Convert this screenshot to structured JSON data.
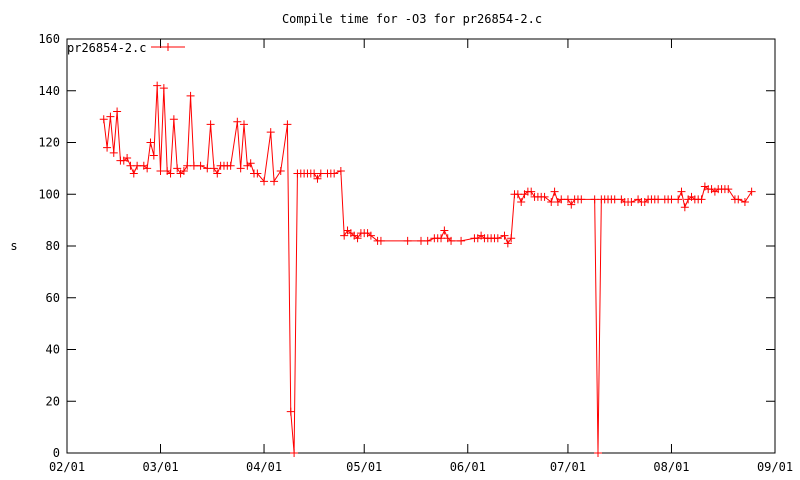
{
  "chart_data": {
    "type": "line",
    "title": "Compile time for -O3 for pr26854-2.c",
    "xlabel": "",
    "ylabel": "s",
    "xlim": [
      "02/01",
      "09/01"
    ],
    "ylim": [
      0,
      160
    ],
    "x_ticks": [
      "02/01",
      "03/01",
      "04/01",
      "05/01",
      "06/01",
      "07/01",
      "08/01",
      "09/01"
    ],
    "y_ticks": [
      0,
      20,
      40,
      60,
      80,
      100,
      120,
      140,
      160
    ],
    "grid": false,
    "legend_position": "top-left",
    "colors": {
      "series": "#ff0000",
      "axes": "#000000"
    },
    "series": [
      {
        "name": "pr26854-2.c",
        "marker": "plus",
        "points": [
          [
            "02/12",
            129
          ],
          [
            "02/13",
            118
          ],
          [
            "02/14",
            130
          ],
          [
            "02/15",
            116
          ],
          [
            "02/16",
            132
          ],
          [
            "02/17",
            113
          ],
          [
            "02/18",
            113
          ],
          [
            "02/19",
            114
          ],
          [
            "02/20",
            111
          ],
          [
            "02/21",
            108
          ],
          [
            "02/22",
            111
          ],
          [
            "02/24",
            111
          ],
          [
            "02/25",
            110
          ],
          [
            "02/26",
            120
          ],
          [
            "02/27",
            115
          ],
          [
            "02/28",
            142
          ],
          [
            "03/01",
            109
          ],
          [
            "03/02",
            141
          ],
          [
            "03/03",
            109
          ],
          [
            "03/04",
            108
          ],
          [
            "03/05",
            129
          ],
          [
            "03/06",
            110
          ],
          [
            "03/07",
            108
          ],
          [
            "03/08",
            109
          ],
          [
            "03/09",
            111
          ],
          [
            "03/10",
            138
          ],
          [
            "03/11",
            111
          ],
          [
            "03/13",
            111
          ],
          [
            "03/15",
            110
          ],
          [
            "03/16",
            127
          ],
          [
            "03/17",
            110
          ],
          [
            "03/18",
            108
          ],
          [
            "03/19",
            111
          ],
          [
            "03/20",
            111
          ],
          [
            "03/21",
            111
          ],
          [
            "03/22",
            111
          ],
          [
            "03/24",
            128
          ],
          [
            "03/25",
            110
          ],
          [
            "03/26",
            127
          ],
          [
            "03/27",
            111
          ],
          [
            "03/28",
            112
          ],
          [
            "03/29",
            108
          ],
          [
            "03/30",
            108
          ],
          [
            "04/01",
            105
          ],
          [
            "04/03",
            124
          ],
          [
            "04/04",
            105
          ],
          [
            "04/06",
            109
          ],
          [
            "04/08",
            127
          ],
          [
            "04/09",
            16
          ],
          [
            "04/10",
            0
          ],
          [
            "04/11",
            108
          ],
          [
            "04/12",
            108
          ],
          [
            "04/13",
            108
          ],
          [
            "04/14",
            108
          ],
          [
            "04/15",
            108
          ],
          [
            "04/16",
            108
          ],
          [
            "04/17",
            106
          ],
          [
            "04/18",
            108
          ],
          [
            "04/20",
            108
          ],
          [
            "04/21",
            108
          ],
          [
            "04/22",
            108
          ],
          [
            "04/24",
            109
          ],
          [
            "04/25",
            84
          ],
          [
            "04/26",
            86
          ],
          [
            "04/27",
            85
          ],
          [
            "04/28",
            84
          ],
          [
            "04/29",
            83
          ],
          [
            "04/30",
            85
          ],
          [
            "05/01",
            85
          ],
          [
            "05/02",
            85
          ],
          [
            "05/03",
            84
          ],
          [
            "05/05",
            82
          ],
          [
            "05/06",
            82
          ],
          [
            "05/14",
            82
          ],
          [
            "05/18",
            82
          ],
          [
            "05/20",
            82
          ],
          [
            "05/22",
            83
          ],
          [
            "05/23",
            83
          ],
          [
            "05/24",
            83
          ],
          [
            "05/25",
            86
          ],
          [
            "05/26",
            83
          ],
          [
            "05/27",
            82
          ],
          [
            "05/30",
            82
          ],
          [
            "06/03",
            83
          ],
          [
            "06/04",
            83
          ],
          [
            "06/05",
            84
          ],
          [
            "06/06",
            83
          ],
          [
            "06/07",
            83
          ],
          [
            "06/08",
            83
          ],
          [
            "06/09",
            83
          ],
          [
            "06/10",
            83
          ],
          [
            "06/12",
            84
          ],
          [
            "06/13",
            81
          ],
          [
            "06/14",
            83
          ],
          [
            "06/15",
            100
          ],
          [
            "06/16",
            100
          ],
          [
            "06/17",
            97
          ],
          [
            "06/18",
            100
          ],
          [
            "06/19",
            101
          ],
          [
            "06/20",
            101
          ],
          [
            "06/21",
            99
          ],
          [
            "06/22",
            99
          ],
          [
            "06/23",
            99
          ],
          [
            "06/24",
            99
          ],
          [
            "06/26",
            97
          ],
          [
            "06/27",
            101
          ],
          [
            "06/28",
            97
          ],
          [
            "06/29",
            98
          ],
          [
            "07/01",
            98
          ],
          [
            "07/02",
            96
          ],
          [
            "07/03",
            98
          ],
          [
            "07/04",
            98
          ],
          [
            "07/05",
            98
          ],
          [
            "07/09",
            98
          ],
          [
            "07/10",
            0
          ],
          [
            "07/11",
            98
          ],
          [
            "07/12",
            98
          ],
          [
            "07/13",
            98
          ],
          [
            "07/14",
            98
          ],
          [
            "07/15",
            98
          ],
          [
            "07/17",
            98
          ],
          [
            "07/18",
            97
          ],
          [
            "07/19",
            97
          ],
          [
            "07/20",
            97
          ],
          [
            "07/22",
            98
          ],
          [
            "07/23",
            97
          ],
          [
            "07/24",
            97
          ],
          [
            "07/25",
            98
          ],
          [
            "07/26",
            98
          ],
          [
            "07/27",
            98
          ],
          [
            "07/28",
            98
          ],
          [
            "07/30",
            98
          ],
          [
            "07/31",
            98
          ],
          [
            "08/01",
            98
          ],
          [
            "08/03",
            98
          ],
          [
            "08/04",
            101
          ],
          [
            "08/05",
            95
          ],
          [
            "08/06",
            98
          ],
          [
            "08/07",
            99
          ],
          [
            "08/08",
            98
          ],
          [
            "08/09",
            98
          ],
          [
            "08/10",
            98
          ],
          [
            "08/11",
            103
          ],
          [
            "08/12",
            102
          ],
          [
            "08/13",
            102
          ],
          [
            "08/14",
            101
          ],
          [
            "08/15",
            102
          ],
          [
            "08/16",
            102
          ],
          [
            "08/17",
            102
          ],
          [
            "08/18",
            102
          ],
          [
            "08/20",
            98
          ],
          [
            "08/21",
            98
          ],
          [
            "08/23",
            97
          ],
          [
            "08/25",
            101
          ]
        ]
      }
    ]
  }
}
